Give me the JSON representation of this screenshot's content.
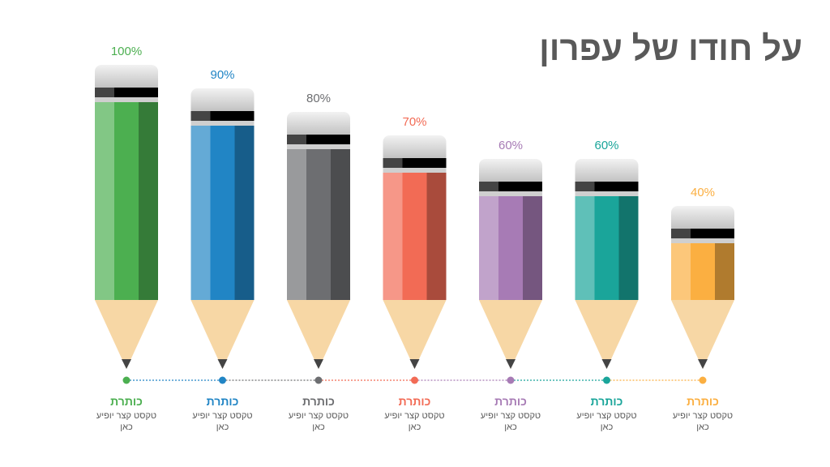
{
  "chart_data": {
    "type": "bar",
    "title": "על חודו של עפרון",
    "categories": [
      "כותרת",
      "כותרת",
      "כותרת",
      "כותרת",
      "כותרת",
      "כותרת",
      "כותרת"
    ],
    "descriptions": [
      "טקסט קצר יופיע כאן",
      "טקסט קצר יופיע כאן",
      "טקסט קצר יופיע כאן",
      "טקסט קצר יופיע כאן",
      "טקסט קצר יופיע כאן",
      "טקסט קצר יופיע כאן",
      "טקסט קצר יופיע כאן"
    ],
    "values": [
      100,
      90,
      80,
      70,
      60,
      60,
      40
    ],
    "value_labels": [
      "100%",
      "90%",
      "80%",
      "70%",
      "60%",
      "60%",
      "40%"
    ],
    "colors": [
      "#4caf50",
      "#2185c5",
      "#6d6e71",
      "#f26b55",
      "#a77bb5",
      "#1aa59a",
      "#fbaf41"
    ]
  }
}
